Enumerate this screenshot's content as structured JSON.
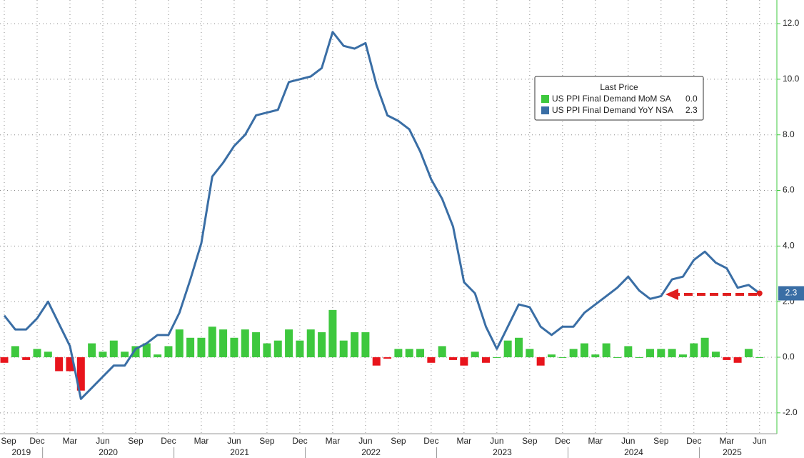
{
  "chart_data": {
    "type": "bar-line",
    "legend_title": "Last Price",
    "x": [
      "2019-09",
      "2019-10",
      "2019-11",
      "2019-12",
      "2020-01",
      "2020-02",
      "2020-03",
      "2020-04",
      "2020-05",
      "2020-06",
      "2020-07",
      "2020-08",
      "2020-09",
      "2020-10",
      "2020-11",
      "2020-12",
      "2021-01",
      "2021-02",
      "2021-03",
      "2021-04",
      "2021-05",
      "2021-06",
      "2021-07",
      "2021-08",
      "2021-09",
      "2021-10",
      "2021-11",
      "2021-12",
      "2022-01",
      "2022-02",
      "2022-03",
      "2022-04",
      "2022-05",
      "2022-06",
      "2022-07",
      "2022-08",
      "2022-09",
      "2022-10",
      "2022-11",
      "2022-12",
      "2023-01",
      "2023-02",
      "2023-03",
      "2023-04",
      "2023-05",
      "2023-06",
      "2023-07",
      "2023-08",
      "2023-09",
      "2023-10",
      "2023-11",
      "2023-12",
      "2024-01",
      "2024-02",
      "2024-03",
      "2024-04",
      "2024-05",
      "2024-06",
      "2024-07",
      "2024-08",
      "2024-09",
      "2024-10",
      "2024-11",
      "2024-12",
      "2025-01",
      "2025-02",
      "2025-03",
      "2025-04",
      "2025-05",
      "2025-06"
    ],
    "xticks": [
      {
        "value": "2019-09",
        "label": "Sep"
      },
      {
        "value": "2019-12",
        "label": "Dec"
      },
      {
        "value": "2020-03",
        "label": "Mar"
      },
      {
        "value": "2020-06",
        "label": "Jun"
      },
      {
        "value": "2020-09",
        "label": "Sep"
      },
      {
        "value": "2020-12",
        "label": "Dec"
      },
      {
        "value": "2021-03",
        "label": "Mar"
      },
      {
        "value": "2021-06",
        "label": "Jun"
      },
      {
        "value": "2021-09",
        "label": "Sep"
      },
      {
        "value": "2021-12",
        "label": "Dec"
      },
      {
        "value": "2022-03",
        "label": "Mar"
      },
      {
        "value": "2022-06",
        "label": "Jun"
      },
      {
        "value": "2022-09",
        "label": "Sep"
      },
      {
        "value": "2022-12",
        "label": "Dec"
      },
      {
        "value": "2023-03",
        "label": "Mar"
      },
      {
        "value": "2023-06",
        "label": "Jun"
      },
      {
        "value": "2023-09",
        "label": "Sep"
      },
      {
        "value": "2023-12",
        "label": "Dec"
      },
      {
        "value": "2024-03",
        "label": "Mar"
      },
      {
        "value": "2024-06",
        "label": "Jun"
      },
      {
        "value": "2024-09",
        "label": "Sep"
      },
      {
        "value": "2024-12",
        "label": "Dec"
      },
      {
        "value": "2025-03",
        "label": "Mar"
      },
      {
        "value": "2025-06",
        "label": "Jun"
      }
    ],
    "year_labels": [
      "2019",
      "2020",
      "2021",
      "2022",
      "2023",
      "2024",
      "2025"
    ],
    "ylim": [
      -2.75,
      12.85
    ],
    "yticks": [
      {
        "value": -2,
        "label": "-2.0"
      },
      {
        "value": 0,
        "label": "0.0"
      },
      {
        "value": 2,
        "label": "2.0"
      },
      {
        "value": 4,
        "label": "4.0"
      },
      {
        "value": 6,
        "label": "6.0"
      },
      {
        "value": 8,
        "label": "8.0"
      },
      {
        "value": 10,
        "label": "10.0"
      },
      {
        "value": 12,
        "label": "12.0"
      }
    ],
    "grid": true,
    "series": [
      {
        "name": "US PPI Final Demand MoM SA",
        "type": "bar",
        "color": "#3ec83e",
        "negative_color": "#e8141c",
        "last_value_label": "0.0",
        "values": [
          -0.2,
          0.4,
          -0.1,
          0.3,
          0.2,
          -0.5,
          -0.5,
          -1.2,
          0.5,
          0.2,
          0.6,
          0.2,
          0.4,
          0.5,
          0.1,
          0.4,
          1.0,
          0.7,
          0.7,
          1.1,
          1.0,
          0.7,
          1.0,
          0.9,
          0.5,
          0.6,
          1.0,
          0.6,
          1.0,
          0.9,
          1.7,
          0.6,
          0.9,
          0.9,
          -0.3,
          -0.05,
          0.3,
          0.3,
          0.3,
          -0.2,
          0.4,
          -0.1,
          -0.3,
          0.2,
          -0.2,
          0.0,
          0.6,
          0.7,
          0.3,
          -0.3,
          0.1,
          0.0,
          0.3,
          0.5,
          0.1,
          0.5,
          0.0,
          0.4,
          0.0,
          0.3,
          0.3,
          0.3,
          0.1,
          0.5,
          0.7,
          0.2,
          -0.1,
          -0.2,
          0.3,
          0.0
        ]
      },
      {
        "name": "US PPI Final Demand YoY NSA",
        "type": "line",
        "color": "#3a6ea5",
        "last_value_label": "2.3",
        "values": [
          1.5,
          1.0,
          1.0,
          1.4,
          2.0,
          1.2,
          0.4,
          -1.5,
          -1.1,
          -0.7,
          -0.3,
          -0.3,
          0.3,
          0.5,
          0.8,
          0.8,
          1.6,
          2.8,
          4.1,
          6.5,
          7.0,
          7.6,
          8.0,
          8.7,
          8.8,
          8.9,
          9.9,
          10.0,
          10.1,
          10.4,
          11.7,
          11.2,
          11.1,
          11.3,
          9.8,
          8.7,
          8.5,
          8.2,
          7.4,
          6.4,
          5.7,
          4.7,
          2.7,
          2.3,
          1.1,
          0.3,
          1.1,
          1.9,
          1.8,
          1.1,
          0.8,
          1.1,
          1.1,
          1.6,
          1.9,
          2.2,
          2.5,
          2.9,
          2.4,
          2.1,
          2.2,
          2.8,
          2.9,
          3.5,
          3.8,
          3.4,
          3.2,
          2.5,
          2.6,
          2.3
        ]
      }
    ]
  }
}
